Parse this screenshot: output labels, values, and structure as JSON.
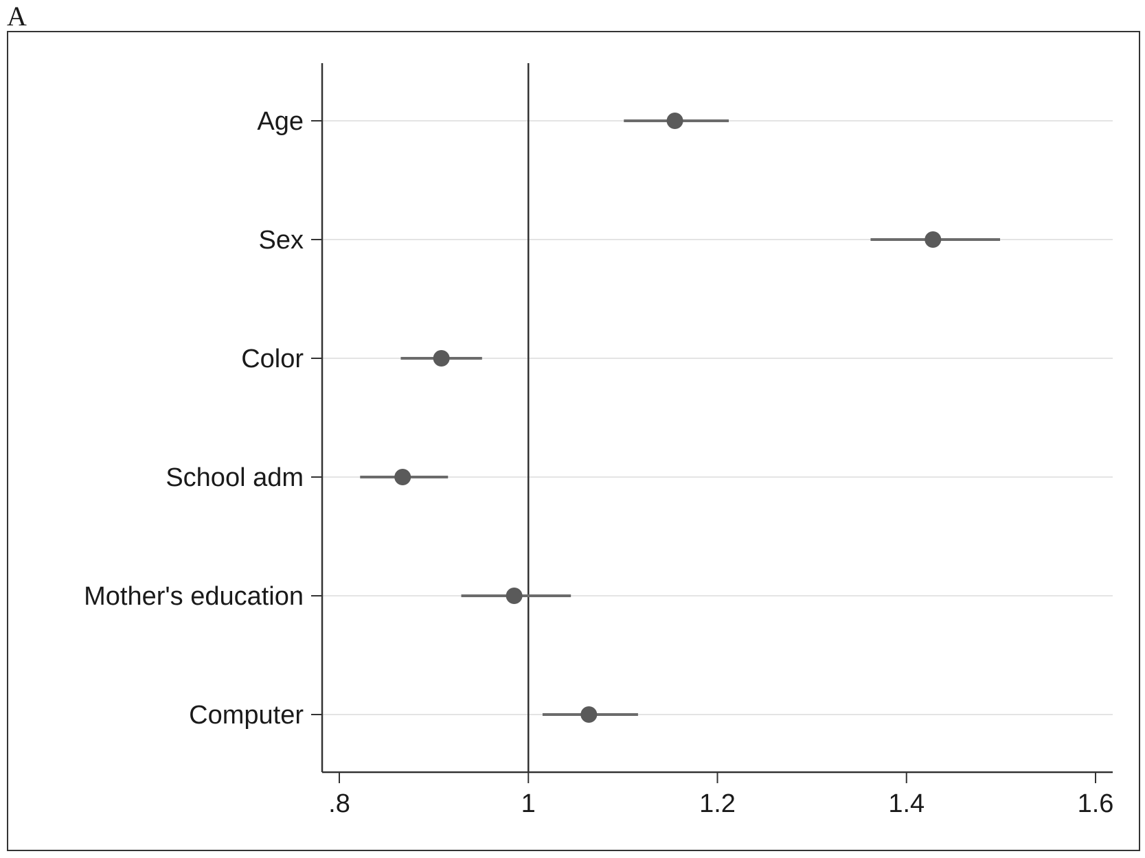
{
  "panel_label": "A",
  "colors": {
    "marker": "#5a5a5a",
    "ci_line": "#6b6b6b",
    "gridline": "#e4e4e4",
    "axis": "#333333",
    "reference_line": "#333333"
  },
  "chart_data": {
    "type": "scatter",
    "subtype": "forest-plot",
    "title": "",
    "xlabel": "",
    "ylabel": "",
    "xlim": [
      0.78,
      1.62
    ],
    "x_ticks": [
      0.8,
      1.0,
      1.2,
      1.4,
      1.6
    ],
    "x_tick_labels": [
      ".8",
      "1",
      "1.2",
      "1.4",
      "1.6"
    ],
    "reference_line_x": 1,
    "grid": "horizontal",
    "categories": [
      "Age",
      "Sex",
      "Color",
      "School adm",
      "Mother's education",
      "Computer"
    ],
    "estimates": [
      1.155,
      1.428,
      0.908,
      0.867,
      0.985,
      1.064
    ],
    "ci_lower": [
      1.101,
      1.362,
      0.865,
      0.822,
      0.929,
      1.015
    ],
    "ci_upper": [
      1.212,
      1.499,
      0.951,
      0.915,
      1.045,
      1.116
    ]
  }
}
